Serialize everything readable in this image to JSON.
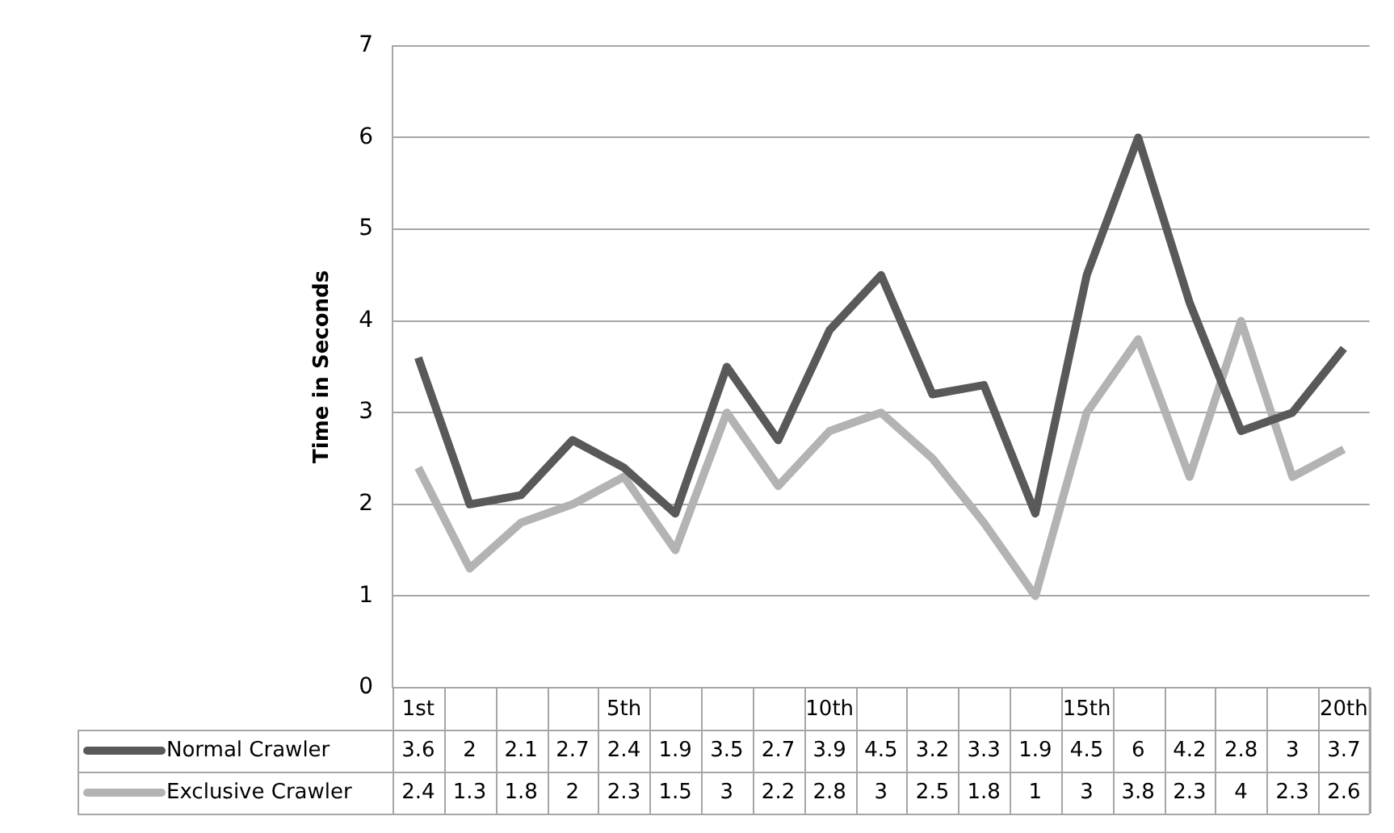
{
  "chart_data": {
    "type": "line",
    "ylabel": "Time in Seconds",
    "categories": [
      "1st",
      null,
      null,
      null,
      "5th",
      null,
      null,
      null,
      "10th",
      null,
      null,
      null,
      null,
      "15th",
      null,
      null,
      null,
      null,
      "20th"
    ],
    "series": [
      {
        "name": "Normal Crawler",
        "color": "#595959",
        "values": [
          3.6,
          2,
          2.1,
          2.7,
          2.4,
          1.9,
          3.5,
          2.7,
          3.9,
          4.5,
          3.2,
          3.3,
          1.9,
          4.5,
          6,
          4.2,
          2.8,
          3,
          3.7
        ]
      },
      {
        "name": "Exclusive Crawler",
        "color": "#b3b3b3",
        "values": [
          2.4,
          1.3,
          1.8,
          2,
          2.3,
          1.5,
          3,
          2.2,
          2.8,
          3,
          2.5,
          1.8,
          1,
          3,
          3.8,
          2.3,
          4,
          2.3,
          2.6
        ]
      }
    ],
    "ylim": [
      0,
      7
    ],
    "yticks": [
      0,
      1,
      2,
      3,
      4,
      5,
      6,
      7
    ],
    "grid": "y",
    "legend": "bottom",
    "data_labels": true,
    "marker": "none",
    "line_style": "solid"
  }
}
